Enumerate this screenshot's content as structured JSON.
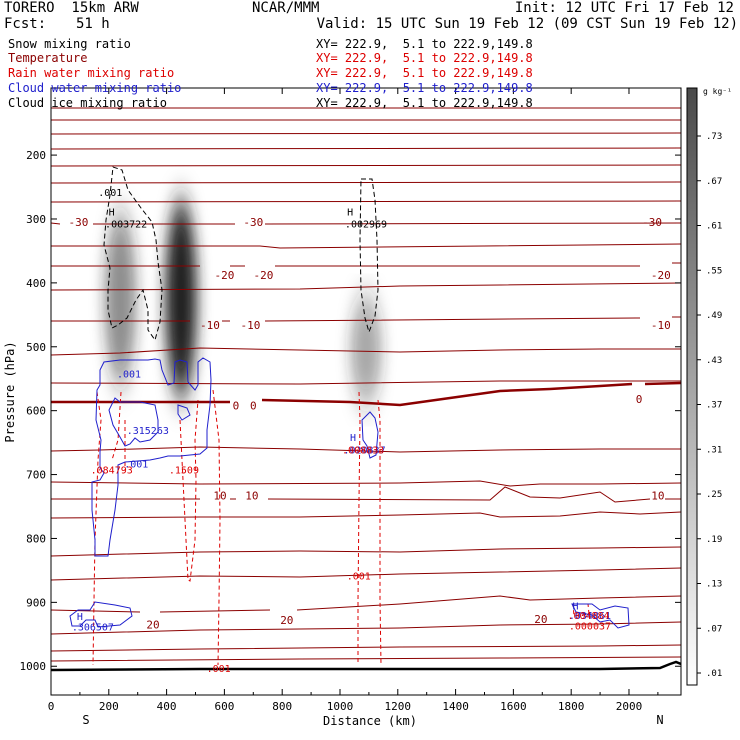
{
  "header": {
    "model": "TORERO  15km ARW",
    "center": "NCAR/MMM",
    "init": "Init: 12 UTC Fri 17 Feb 12",
    "fcst_label": "Fcst:",
    "fcst_value": "51 h",
    "valid": "Valid: 15 UTC Sun 19 Feb 12 (09 CST Sun 19 Feb 12)"
  },
  "legend": [
    {
      "name": "Snow mixing ratio",
      "xy": "XY= 222.9,  5.1 to 222.9,149.8",
      "color": "#000000"
    },
    {
      "name": "Temperature",
      "xy": "XY= 222.9,  5.1 to 222.9,149.8",
      "color": "#8b0000"
    },
    {
      "name": "Rain water mixing ratio",
      "xy": "XY= 222.9,  5.1 to 222.9,149.8",
      "color": "#dd0000"
    },
    {
      "name": "Cloud water mixing ratio",
      "xy": "XY= 222.9,  5.1 to 222.9,149.8",
      "color": "#1f1fcc"
    },
    {
      "name": "Cloud ice mixing ratio",
      "xy": "XY= 222.9,  5.1 to 222.9,149.8",
      "color": "#000000"
    }
  ],
  "colors": {
    "temp": "#8b0000",
    "rain": "#dd0000",
    "cloudwater": "#1f1fcc",
    "ice": "#000000",
    "ground": "#000000"
  },
  "chart_data": {
    "type": "heatmap",
    "title": "Vertical cross section",
    "xlabel": "Distance (km)",
    "ylabel": "Pressure (hPa)",
    "xlim": [
      0,
      2180
    ],
    "ylim": [
      1045,
      95
    ],
    "x_ticks": [
      0,
      200,
      400,
      600,
      800,
      1000,
      1200,
      1400,
      1600,
      1800,
      2000
    ],
    "x_tick_labels": [
      "0",
      "200",
      "400",
      "600",
      "800",
      "1000",
      "1200",
      "1400",
      "1600",
      "1800",
      "2000"
    ],
    "y_ticks": [
      200,
      300,
      400,
      500,
      600,
      700,
      800,
      900,
      1000
    ],
    "y_tick_labels": [
      "200",
      "300",
      "400",
      "500",
      "600",
      "700",
      "800",
      "900",
      "1000"
    ],
    "side_labels": {
      "left": "S",
      "right": "N"
    },
    "snow_colorbar": {
      "unit": "g kg⁻¹",
      "levels": [
        0.01,
        0.07,
        0.13,
        0.19,
        0.25,
        0.31,
        0.37,
        0.43,
        0.49,
        0.55,
        0.61,
        0.67,
        0.73
      ],
      "labels": [
        ".01",
        ".07",
        ".13",
        ".19",
        ".25",
        ".31",
        ".37",
        ".43",
        ".49",
        ".55",
        ".61",
        ".67",
        ".73"
      ]
    },
    "snow_shading": [
      {
        "x_center": 240,
        "p_top": 290,
        "p_bottom": 560,
        "peak": 0.25
      },
      {
        "x_center": 450,
        "p_top": 270,
        "p_bottom": 580,
        "peak": 0.73
      },
      {
        "x_center": 1090,
        "p_top": 420,
        "p_bottom": 590,
        "peak": 0.15
      }
    ],
    "temperature_labels": [
      {
        "x": 95,
        "p": 305,
        "text": "-30"
      },
      {
        "x": 700,
        "p": 305,
        "text": "-30"
      },
      {
        "x": 2080,
        "p": 305,
        "text": "-30"
      },
      {
        "x": 600,
        "p": 388,
        "text": "-20"
      },
      {
        "x": 735,
        "p": 388,
        "text": "-20"
      },
      {
        "x": 2110,
        "p": 388,
        "text": "-20"
      },
      {
        "x": 550,
        "p": 466,
        "text": "-10"
      },
      {
        "x": 690,
        "p": 466,
        "text": "-10"
      },
      {
        "x": 2110,
        "p": 466,
        "text": "-10"
      },
      {
        "x": 640,
        "p": 592,
        "text": "0"
      },
      {
        "x": 700,
        "p": 592,
        "text": "0"
      },
      {
        "x": 2035,
        "p": 582,
        "text": "0"
      },
      {
        "x": 585,
        "p": 733,
        "text": "10"
      },
      {
        "x": 695,
        "p": 733,
        "text": "10"
      },
      {
        "x": 2100,
        "p": 733,
        "text": "10"
      },
      {
        "x": 353,
        "p": 935,
        "text": "20"
      },
      {
        "x": 816,
        "p": 928,
        "text": "20"
      },
      {
        "x": 1695,
        "p": 926,
        "text": "20"
      }
    ],
    "annotations": [
      {
        "kind": "ice",
        "x": 205,
        "p": 258,
        "text": ".001"
      },
      {
        "kind": "ice",
        "x": 210,
        "p": 288,
        "text": "H"
      },
      {
        "kind": "ice",
        "x": 260,
        "p": 307,
        "text": ".003722"
      },
      {
        "kind": "ice",
        "x": 1035,
        "p": 288,
        "text": "H"
      },
      {
        "kind": "ice",
        "x": 1090,
        "p": 307,
        "text": ".002969"
      },
      {
        "kind": "cloudwater",
        "x": 270,
        "p": 542,
        "text": ".001"
      },
      {
        "kind": "cloudwater",
        "x": 335,
        "p": 630,
        "text": ".315263"
      },
      {
        "kind": "cloudwater",
        "x": 295,
        "p": 683,
        "text": ".001"
      },
      {
        "kind": "cloudwater",
        "x": 1045,
        "p": 641,
        "text": "H"
      },
      {
        "kind": "cloudwater",
        "x": 1085,
        "p": 661,
        "text": ".020837"
      },
      {
        "kind": "rain",
        "x": 1080,
        "p": 661,
        "text": ".008833"
      },
      {
        "kind": "rain",
        "x": 210,
        "p": 692,
        "text": ".084793"
      },
      {
        "kind": "rain",
        "x": 460,
        "p": 692,
        "text": ".1509"
      },
      {
        "kind": "rain",
        "x": 1065,
        "p": 858,
        "text": ".001"
      },
      {
        "kind": "rain",
        "x": 580,
        "p": 1003,
        "text": ".001"
      },
      {
        "kind": "cloudwater",
        "x": 100,
        "p": 921,
        "text": "H"
      },
      {
        "kind": "cloudwater",
        "x": 145,
        "p": 938,
        "text": ".306507"
      },
      {
        "kind": "cloudwater",
        "x": 1815,
        "p": 905,
        "text": "H"
      },
      {
        "kind": "cloudwater",
        "x": 1865,
        "p": 920,
        "text": ".034861"
      },
      {
        "kind": "rain",
        "x": 1860,
        "p": 920,
        "text": ".004884"
      },
      {
        "kind": "rain",
        "x": 1865,
        "p": 936,
        "text": ".000037"
      }
    ]
  }
}
